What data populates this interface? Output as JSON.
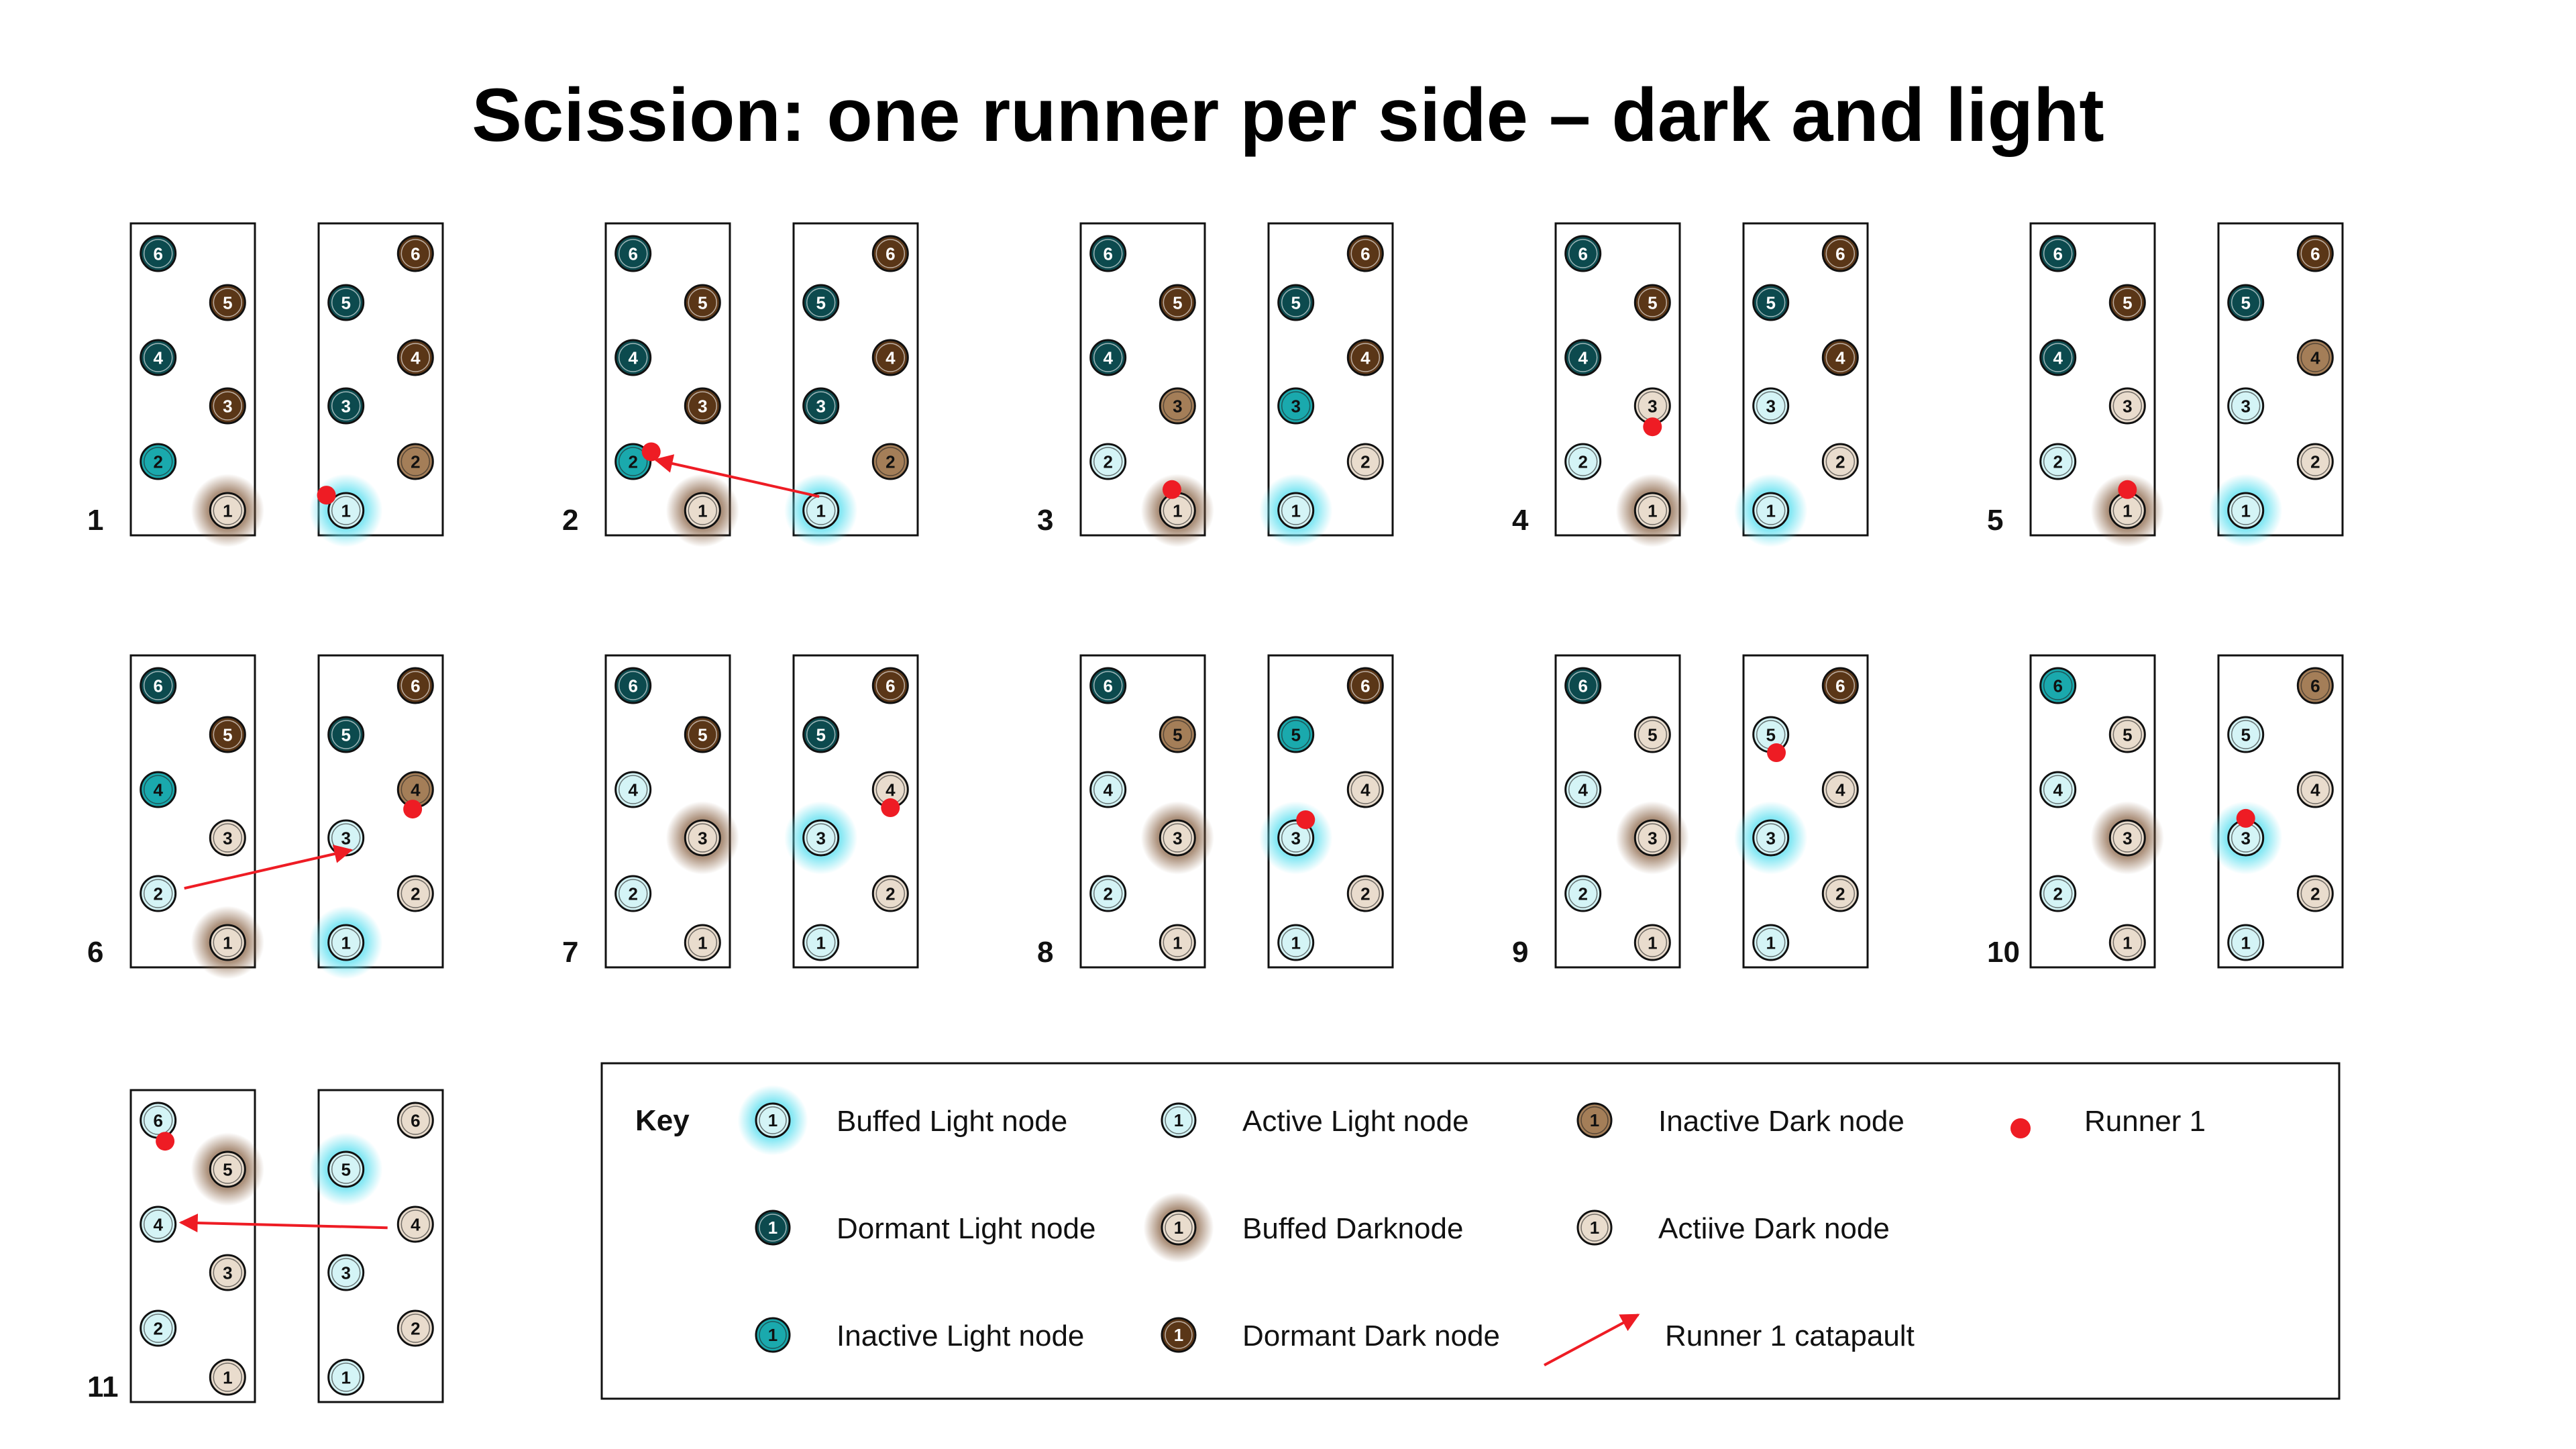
{
  "title": "Scission: one runner per side – dark and light",
  "colors": {
    "dormant_light": "#0c4a4e",
    "inactive_light": "#1aa9ad",
    "active_light": "#d4f4f6",
    "dormant_dark": "#5a3617",
    "inactive_dark": "#a47e58",
    "active_dark": "#e9dccd",
    "runner": "#ee1c24",
    "glow_light": "#5fe0f0",
    "glow_dark": "#8a6446",
    "stroke": "#111111"
  },
  "steps": [
    {
      "label": "1",
      "left": {
        "6": "DL",
        "5": "DD",
        "4": "DL",
        "3": "DD",
        "2": "IL",
        "1": "BD"
      },
      "right": {
        "6": "DD",
        "5": "DL",
        "4": "DD",
        "3": "DL",
        "2": "ID",
        "1": "BL"
      },
      "runner": {
        "panel": "right",
        "near": "1",
        "dx": -0.7,
        "dy": -0.55
      }
    },
    {
      "label": "2",
      "left": {
        "6": "DL",
        "5": "DD",
        "4": "DL",
        "3": "DD",
        "2": "IL",
        "1": "BD"
      },
      "right": {
        "6": "DD",
        "5": "DL",
        "4": "DD",
        "3": "DL",
        "2": "ID",
        "1": "BL"
      },
      "runner": {
        "panel": "left",
        "near": "2",
        "dx": 0.65,
        "dy": -0.35
      },
      "arrow": {
        "from": [
          "right",
          "1",
          -0.1,
          -0.8
        ],
        "to": [
          "left",
          "2",
          1.3,
          -0.1
        ]
      }
    },
    {
      "label": "3",
      "left": {
        "6": "DL",
        "5": "DD",
        "4": "DL",
        "3": "ID",
        "2": "AL",
        "1": "BD"
      },
      "right": {
        "6": "DD",
        "5": "DL",
        "4": "DD",
        "3": "IL",
        "2": "AD",
        "1": "BL"
      },
      "runner": {
        "panel": "left",
        "near": "1",
        "dx": -0.2,
        "dy": -0.75
      }
    },
    {
      "label": "4",
      "left": {
        "6": "DL",
        "5": "DD",
        "4": "DL",
        "3": "AD",
        "2": "AL",
        "1": "BD"
      },
      "right": {
        "6": "DD",
        "5": "DL",
        "4": "DD",
        "3": "AL",
        "2": "AD",
        "1": "BL"
      },
      "runner": {
        "panel": "left",
        "near": "3",
        "dx": 0,
        "dy": 0.75
      }
    },
    {
      "label": "5",
      "left": {
        "6": "DL",
        "5": "DD",
        "4": "DL",
        "3": "AD",
        "2": "AL",
        "1": "BD"
      },
      "right": {
        "6": "DD",
        "5": "DL",
        "4": "ID",
        "3": "AL",
        "2": "AD",
        "1": "BL"
      },
      "runner": {
        "panel": "left",
        "near": "1",
        "dx": 0,
        "dy": -0.75
      }
    },
    {
      "label": "6",
      "left": {
        "6": "DL",
        "5": "DD",
        "4": "IL",
        "3": "AD",
        "2": "AL",
        "1": "BD"
      },
      "right": {
        "6": "DD",
        "5": "DL",
        "4": "ID",
        "3": "AL",
        "2": "AD",
        "1": "BL"
      },
      "runner": {
        "panel": "right",
        "near": "4",
        "dx": -0.1,
        "dy": 0.7
      },
      "arrow": {
        "from": [
          "left",
          "2",
          1.5,
          -0.3
        ],
        "to": [
          "right",
          "3",
          0.3,
          0.7
        ]
      }
    },
    {
      "label": "7",
      "left": {
        "6": "DL",
        "5": "DD",
        "4": "AL",
        "3": "BD",
        "2": "AL",
        "1": "AD"
      },
      "right": {
        "6": "DD",
        "5": "DL",
        "4": "AD",
        "3": "BL",
        "2": "AD",
        "1": "AL"
      },
      "runner": {
        "panel": "right",
        "near": "4",
        "dx": 0,
        "dy": 0.65
      }
    },
    {
      "label": "8",
      "left": {
        "6": "DL",
        "5": "ID",
        "4": "AL",
        "3": "BD",
        "2": "AL",
        "1": "AD"
      },
      "right": {
        "6": "DD",
        "5": "IL",
        "4": "AD",
        "3": "BL",
        "2": "AD",
        "1": "AL"
      },
      "runner": {
        "panel": "right",
        "near": "3",
        "dx": 0.35,
        "dy": -0.65
      }
    },
    {
      "label": "9",
      "left": {
        "6": "DL",
        "5": "AD",
        "4": "AL",
        "3": "BD",
        "2": "AL",
        "1": "AD"
      },
      "right": {
        "6": "DD",
        "5": "AL",
        "4": "AD",
        "3": "BL",
        "2": "AD",
        "1": "AL"
      },
      "runner": {
        "panel": "right",
        "near": "5",
        "dx": 0.2,
        "dy": 0.65
      }
    },
    {
      "label": "10",
      "left": {
        "6": "IL",
        "5": "AD",
        "4": "AL",
        "3": "BD",
        "2": "AL",
        "1": "AD"
      },
      "right": {
        "6": "ID",
        "5": "AL",
        "4": "AD",
        "3": "BL",
        "2": "AD",
        "1": "AL"
      },
      "runner": {
        "panel": "right",
        "near": "3",
        "dx": 0,
        "dy": -0.7
      }
    },
    {
      "label": "11",
      "left": {
        "6": "AL",
        "5": "BD",
        "4": "AL",
        "3": "AD",
        "2": "AL",
        "1": "AD"
      },
      "right": {
        "6": "AD",
        "5": "BL",
        "4": "AD",
        "3": "AL",
        "2": "AD",
        "1": "AL"
      },
      "runner": {
        "panel": "left",
        "near": "6",
        "dx": 0.25,
        "dy": 0.75
      },
      "arrow": {
        "from": [
          "right",
          "4",
          -1.6,
          0.2
        ],
        "to": [
          "left",
          "4",
          1.3,
          -0.1
        ]
      }
    }
  ],
  "key": {
    "title": "Key",
    "items": [
      {
        "type": "BL",
        "symbol": "1",
        "label": "Buffed Light node"
      },
      {
        "type": "DL",
        "symbol": "1",
        "label": "Dormant Light node"
      },
      {
        "type": "IL",
        "symbol": "1",
        "label": "Inactive Light node"
      },
      {
        "type": "AL",
        "symbol": "1",
        "label": "Active Light node"
      },
      {
        "type": "BD",
        "symbol": "1",
        "label": "Buffed Darknode"
      },
      {
        "type": "DD",
        "symbol": "1",
        "label": "Dormant Dark node"
      },
      {
        "type": "ID",
        "symbol": "1",
        "label": "Inactive Dark node"
      },
      {
        "type": "AD",
        "symbol": "1",
        "label": "Actiive Dark node"
      },
      {
        "type": "ARROW",
        "symbol": "",
        "label": "Runner 1 catapault"
      },
      {
        "type": "RUNNER",
        "symbol": "",
        "label": "Runner 1"
      }
    ]
  }
}
